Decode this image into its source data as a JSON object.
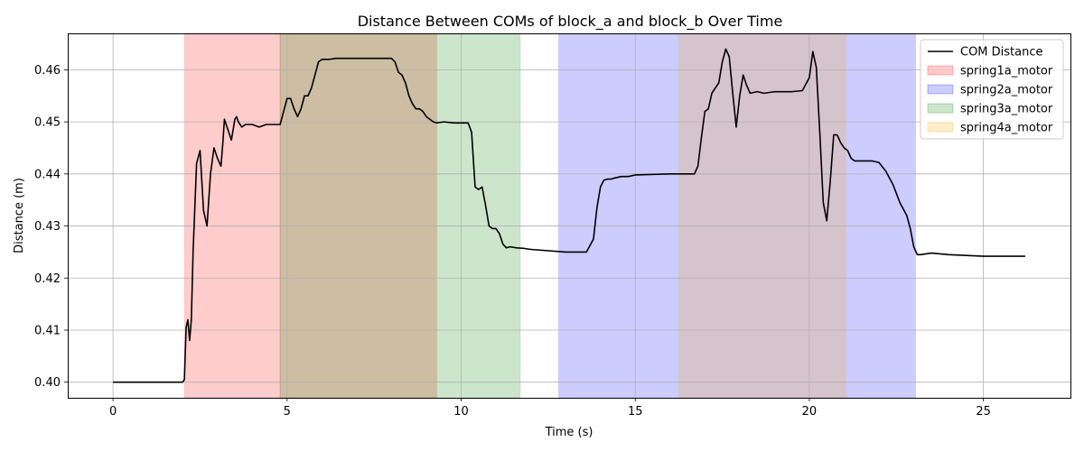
{
  "chart_data": {
    "type": "line",
    "title": "Distance Between COMs of block_a and block_b Over Time",
    "xlabel": "Time (s)",
    "ylabel": "Distance (m)",
    "xlim": [
      -1.3,
      27.5
    ],
    "ylim": [
      0.397,
      0.467
    ],
    "xticks": [
      0,
      5,
      10,
      15,
      20,
      25
    ],
    "xtick_labels": [
      "0",
      "5",
      "10",
      "15",
      "20",
      "25"
    ],
    "yticks": [
      0.4,
      0.41,
      0.42,
      0.43,
      0.44,
      0.45,
      0.46
    ],
    "ytick_labels": [
      "0.40",
      "0.41",
      "0.42",
      "0.43",
      "0.44",
      "0.45",
      "0.46"
    ],
    "grid": true,
    "legend_position": "top-right",
    "series": [
      {
        "name": "COM Distance",
        "color": "#000000",
        "x": [
          0,
          1.0,
          2.0,
          2.05,
          2.1,
          2.15,
          2.2,
          2.25,
          2.3,
          2.4,
          2.5,
          2.6,
          2.7,
          2.8,
          2.9,
          3.0,
          3.1,
          3.15,
          3.2,
          3.3,
          3.4,
          3.5,
          3.55,
          3.6,
          3.7,
          3.8,
          3.9,
          4.0,
          4.2,
          4.4,
          4.6,
          4.8,
          4.9,
          5.0,
          5.1,
          5.2,
          5.3,
          5.4,
          5.5,
          5.6,
          5.7,
          5.8,
          5.9,
          6.0,
          6.2,
          6.4,
          6.6,
          7.0,
          7.5,
          8.0,
          8.1,
          8.2,
          8.3,
          8.4,
          8.5,
          8.6,
          8.7,
          8.8,
          8.9,
          9.0,
          9.1,
          9.2,
          9.3,
          9.5,
          9.8,
          10.0,
          10.2,
          10.3,
          10.4,
          10.5,
          10.6,
          10.7,
          10.8,
          10.9,
          11.0,
          11.1,
          11.2,
          11.3,
          11.4,
          11.6,
          11.8,
          12.0,
          13.0,
          13.6,
          13.8,
          13.9,
          14.0,
          14.1,
          14.2,
          14.3,
          14.4,
          14.6,
          14.8,
          15.0,
          16.0,
          16.5,
          16.7,
          16.8,
          16.9,
          17.0,
          17.1,
          17.2,
          17.3,
          17.4,
          17.5,
          17.6,
          17.7,
          17.8,
          17.9,
          18.0,
          18.1,
          18.2,
          18.3,
          18.5,
          18.7,
          19.0,
          19.5,
          19.8,
          20.0,
          20.1,
          20.2,
          20.3,
          20.4,
          20.5,
          20.6,
          20.7,
          20.8,
          20.9,
          21.0,
          21.1,
          21.2,
          21.3,
          21.8,
          22.0,
          22.2,
          22.4,
          22.6,
          22.8,
          22.9,
          23.0,
          23.1,
          23.2,
          23.5,
          24.0,
          25.0,
          26.2
        ],
        "y": [
          0.4,
          0.4,
          0.4,
          0.4005,
          0.4105,
          0.412,
          0.408,
          0.412,
          0.425,
          0.442,
          0.4445,
          0.433,
          0.43,
          0.44,
          0.445,
          0.443,
          0.4415,
          0.4455,
          0.4505,
          0.4485,
          0.4465,
          0.4505,
          0.451,
          0.45,
          0.449,
          0.4495,
          0.4495,
          0.4495,
          0.449,
          0.4495,
          0.4495,
          0.4495,
          0.452,
          0.4545,
          0.4545,
          0.4525,
          0.451,
          0.4525,
          0.455,
          0.455,
          0.4565,
          0.459,
          0.4615,
          0.462,
          0.462,
          0.4622,
          0.4622,
          0.4622,
          0.4622,
          0.4622,
          0.4615,
          0.4595,
          0.459,
          0.4575,
          0.455,
          0.4535,
          0.4525,
          0.4525,
          0.452,
          0.451,
          0.4505,
          0.45,
          0.4498,
          0.45,
          0.4498,
          0.4498,
          0.4498,
          0.448,
          0.4375,
          0.437,
          0.4375,
          0.434,
          0.43,
          0.4295,
          0.4295,
          0.4285,
          0.4265,
          0.4258,
          0.426,
          0.4258,
          0.4257,
          0.4255,
          0.425,
          0.425,
          0.4275,
          0.4335,
          0.4375,
          0.4388,
          0.439,
          0.439,
          0.4392,
          0.4395,
          0.4395,
          0.4398,
          0.44,
          0.44,
          0.44,
          0.4415,
          0.447,
          0.452,
          0.4525,
          0.4555,
          0.4565,
          0.4575,
          0.4615,
          0.464,
          0.4625,
          0.4555,
          0.449,
          0.455,
          0.459,
          0.457,
          0.4555,
          0.4558,
          0.4555,
          0.4558,
          0.4558,
          0.456,
          0.4585,
          0.4635,
          0.4605,
          0.448,
          0.4345,
          0.431,
          0.4385,
          0.4475,
          0.4475,
          0.446,
          0.445,
          0.4445,
          0.443,
          0.4425,
          0.4425,
          0.4422,
          0.4405,
          0.438,
          0.4345,
          0.432,
          0.4295,
          0.426,
          0.4245,
          0.4245,
          0.4248,
          0.4245,
          0.4242,
          0.4242
        ]
      }
    ],
    "shaded_regions": [
      {
        "name": "spring1a_motor",
        "color": "#ff0000",
        "alpha": 0.2,
        "x_ranges": [
          [
            2.05,
            4.8
          ],
          [
            4.8,
            9.3
          ]
        ]
      },
      {
        "name": "spring2a_motor",
        "color": "#0000ff",
        "alpha": 0.2,
        "x_ranges": [
          [
            12.8,
            23.05
          ]
        ]
      },
      {
        "name": "spring3a_motor",
        "color": "#008000",
        "alpha": 0.2,
        "x_ranges": [
          [
            4.8,
            11.7
          ]
        ]
      },
      {
        "name": "spring4a_motor",
        "color": "#ffa500",
        "alpha": 0.2,
        "x_ranges": [
          [
            16.25,
            21.05
          ]
        ]
      }
    ]
  }
}
